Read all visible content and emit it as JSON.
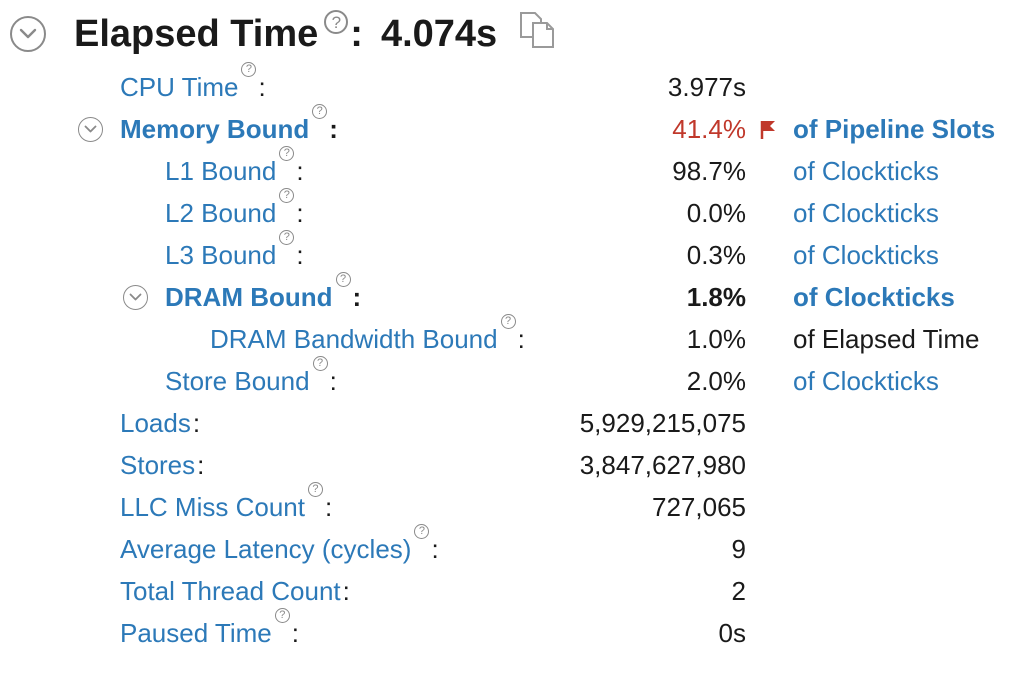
{
  "header": {
    "title": "Elapsed Time",
    "help": "?",
    "colon": ":",
    "value": "4.074s"
  },
  "metrics": [
    {
      "label": "CPU Time",
      "help": "?",
      "value": "3.977s",
      "unit": ""
    },
    {
      "label": "Memory Bound",
      "help": "?",
      "value": "41.4%",
      "unit": "of Pipeline Slots"
    },
    {
      "label": "L1 Bound",
      "help": "?",
      "value": "98.7%",
      "unit": "of Clockticks"
    },
    {
      "label": "L2 Bound",
      "help": "?",
      "value": "0.0%",
      "unit": "of Clockticks"
    },
    {
      "label": "L3 Bound",
      "help": "?",
      "value": "0.3%",
      "unit": "of Clockticks"
    },
    {
      "label": "DRAM Bound",
      "help": "?",
      "value": "1.8%",
      "unit": "of Clockticks"
    },
    {
      "label": "DRAM Bandwidth Bound",
      "help": "?",
      "value": "1.0%",
      "unit": "of Elapsed Time"
    },
    {
      "label": "Store Bound",
      "help": "?",
      "value": "2.0%",
      "unit": "of Clockticks"
    },
    {
      "label": "Loads",
      "help": "",
      "value": "5,929,215,075",
      "unit": ""
    },
    {
      "label": "Stores",
      "help": "",
      "value": "3,847,627,980",
      "unit": ""
    },
    {
      "label": "LLC Miss Count",
      "help": "?",
      "value": "727,065",
      "unit": ""
    },
    {
      "label": "Average Latency (cycles)",
      "help": "?",
      "value": "9",
      "unit": ""
    },
    {
      "label": "Total Thread Count",
      "help": "",
      "value": "2",
      "unit": ""
    },
    {
      "label": "Paused Time",
      "help": "?",
      "value": "0s",
      "unit": ""
    }
  ],
  "colon": ":",
  "colors": {
    "link": "#2c79b8",
    "alert": "#c0382b",
    "text": "#1a1a1a",
    "icon": "#8a8a8a"
  },
  "icons": {
    "expand": "chevron-down-icon",
    "help": "help-icon",
    "copy": "copy-icon",
    "flag": "flag-icon"
  }
}
